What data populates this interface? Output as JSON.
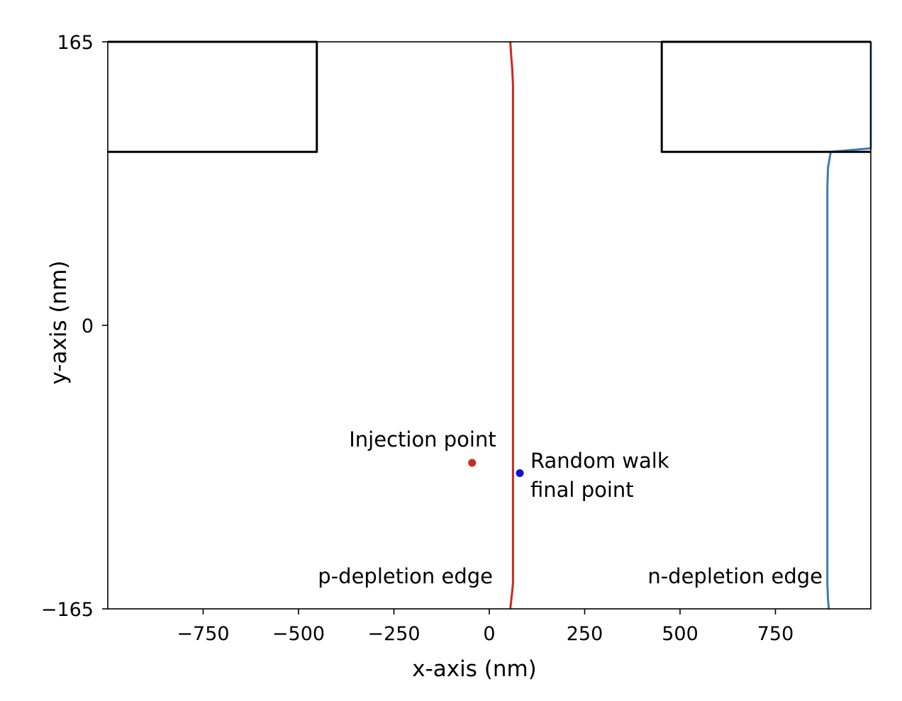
{
  "chart_data": {
    "type": "line",
    "title": "",
    "xlabel": "x-axis (nm)",
    "ylabel": "y-axis (nm)",
    "xlim": [
      -1000,
      1000
    ],
    "ylim": [
      -165,
      165
    ],
    "xticks": [
      -750,
      -500,
      -250,
      0,
      250,
      500,
      750
    ],
    "xtick_labels": [
      "−750",
      "−500",
      "−250",
      "0",
      "250",
      "500",
      "750"
    ],
    "yticks": [
      -165,
      0,
      165
    ],
    "ytick_labels": [
      "−165",
      "0",
      "165"
    ],
    "grid": false,
    "legend": "none",
    "series": [
      {
        "name": "p-depletion edge",
        "color": "#cc2a1f",
        "x": [
          55,
          58,
          60,
          62,
          62,
          62,
          62,
          62,
          62,
          62,
          60,
          55
        ],
        "y": [
          165,
          155,
          150,
          140,
          100,
          50,
          0,
          -50,
          -100,
          -150,
          -155,
          -165
        ]
      },
      {
        "name": "n-depletion edge",
        "color": "#3a7cb8",
        "x": [
          1000,
          1000,
          1000,
          895,
          888,
          886,
          886,
          886,
          886,
          886,
          888,
          890
        ],
        "y": [
          165,
          105,
          103,
          101,
          92,
          80,
          30,
          -50,
          -100,
          -150,
          -160,
          -165
        ]
      },
      {
        "name": "left-block",
        "color": "#000000",
        "x": [
          -1000,
          -452,
          -452,
          -1000
        ],
        "y": [
          165,
          165,
          101,
          101
        ]
      },
      {
        "name": "right-block",
        "color": "#000000",
        "x": [
          1000,
          452,
          452,
          1000
        ],
        "y": [
          165,
          165,
          101,
          101
        ]
      }
    ],
    "points": [
      {
        "name": "Injection point",
        "x": -45,
        "y": -80,
        "color": "#cc2a1f"
      },
      {
        "name": "Random walk final point",
        "x": 80,
        "y": -86,
        "color": "#1010cc"
      }
    ],
    "annotations": {
      "injection": "Injection point",
      "random_walk_1": "Random walk",
      "random_walk_2": "final point",
      "p_edge": "p-depletion edge",
      "n_edge": "n-depletion edge"
    }
  }
}
